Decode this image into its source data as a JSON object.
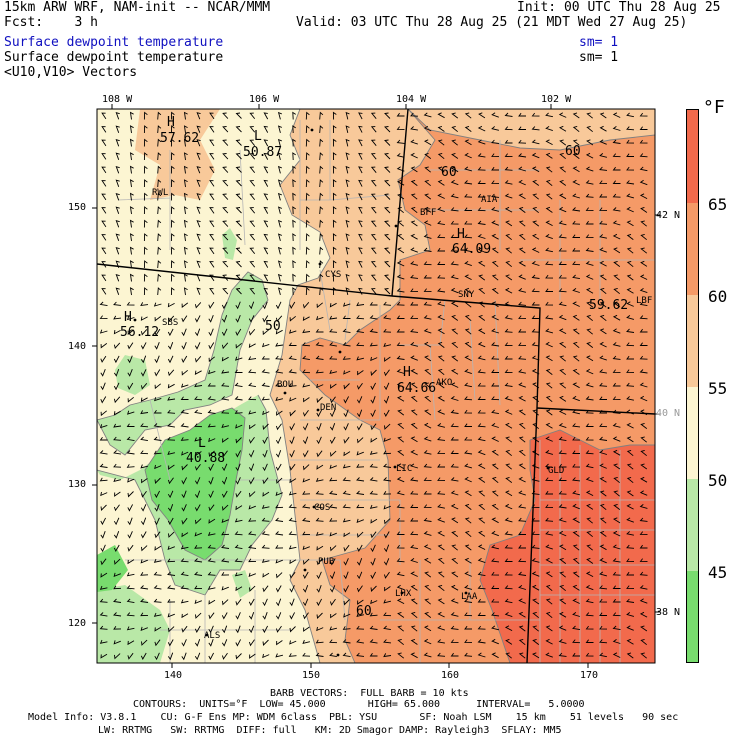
{
  "header": {
    "model": "15km ARW WRF, NAM-init -- NCAR/MMM",
    "fcst": "Fcst:    3 h",
    "field_blue": "Surface dewpoint temperature",
    "field": "Surface dewpoint temperature",
    "vectors": "<U10,V10> Vectors",
    "init": "Init: 00 UTC Thu 28 Aug 25",
    "valid": "Valid: 03 UTC Thu 28 Aug 25 (21 MDT Wed 27 Aug 25)",
    "sm_blue": "sm= 1",
    "sm": "sm= 1"
  },
  "axes": {
    "top_lon": [
      "108 W",
      "106 W",
      "104 W",
      "102 W"
    ],
    "left_y": [
      "150",
      "140",
      "130",
      "120"
    ],
    "bottom_x": [
      "140",
      "150",
      "160",
      "170"
    ],
    "right_lat": [
      "42 N",
      "40 N",
      "38 N"
    ]
  },
  "legend": {
    "unit": "°F",
    "ticks": [
      "65",
      "60",
      "55",
      "50",
      "45"
    ],
    "colors": [
      "#f26a4c",
      "#f59a67",
      "#f8c99a",
      "#fcf5d2",
      "#b9e8a7",
      "#78dc6e"
    ]
  },
  "stations": [
    "RWL",
    "BFF",
    "AIA",
    "CYS",
    "SNY",
    "LBF",
    "SBS",
    "AKO",
    "BOU",
    "DEN",
    "LIC",
    "GLD",
    "COS",
    "PUB",
    "LHX",
    "LAA",
    "ALS"
  ],
  "extrema": [
    {
      "type": "H",
      "value": "57.62"
    },
    {
      "type": "L",
      "value": "50.87"
    },
    {
      "type": "H",
      "value": "64.09"
    },
    {
      "type": "H",
      "value": "56.12"
    },
    {
      "type": "H",
      "value": "64.66"
    },
    {
      "type": "L",
      "value": "40.88"
    },
    {
      "type": "",
      "value": "59.62"
    }
  ],
  "contour_labels": [
    "60",
    "60",
    "50",
    "60"
  ],
  "footer": {
    "barb_note": "BARB VECTORS:  FULL BARB = 10 kts",
    "contours": "CONTOURS:  UNITS=°F  LOW= 45.000       HIGH= 65.000      INTERVAL=   5.0000",
    "model_info": "Model Info: V3.8.1    CU: G-F Ens MP: WDM 6class  PBL: YSU       SF: Noah LSM    15 km    51 levels   90 sec",
    "model_info2": "LW: RRTMG   SW: RRTMG  DIFF: full   KM: 2D Smagor DAMP: Rayleigh3  SFLAY: MM5"
  }
}
